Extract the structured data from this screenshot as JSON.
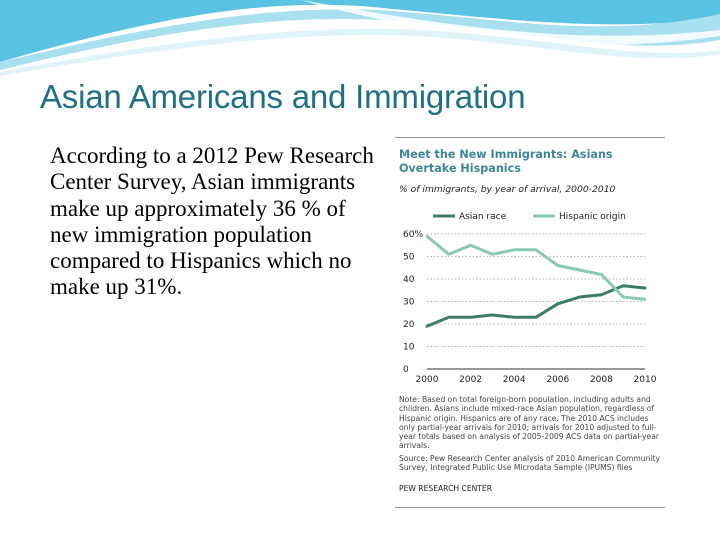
{
  "slide": {
    "title": "Asian Americans and Immigration",
    "body": "According to a 2012 Pew Research Center Survey, Asian immigrants make up approximately 36 % of new immigration population compared to Hispanics which no make up 31%.",
    "title_color": "#1f6f87",
    "header_colors": [
      "#5ac3e4",
      "#a8e0ef",
      "#dff3f9"
    ]
  },
  "chart_data": {
    "type": "line",
    "title": "Meet the New Immigrants: Asians Overtake Hispanics",
    "subtitle": "% of immigrants, by year of arrival, 2000-2010",
    "x": [
      2000,
      2001,
      2002,
      2003,
      2004,
      2005,
      2006,
      2007,
      2008,
      2009,
      2010
    ],
    "x_ticks": [
      "2000",
      "2002",
      "2004",
      "2006",
      "2008",
      "2010"
    ],
    "y_ticks": [
      "0",
      "10",
      "20",
      "30",
      "40",
      "50",
      "60%"
    ],
    "xlim": [
      2000,
      2010
    ],
    "ylim": [
      0,
      60
    ],
    "grid": "horizontal dotted",
    "legend_position": "top",
    "series": [
      {
        "name": "Asian race",
        "color": "#3d7c67",
        "values": [
          19,
          23,
          23,
          24,
          23,
          23,
          29,
          32,
          33,
          37,
          36
        ]
      },
      {
        "name": "Hispanic origin",
        "color": "#8bc9b4",
        "values": [
          59,
          51,
          55,
          51,
          53,
          53,
          46,
          44,
          42,
          32,
          31
        ]
      }
    ],
    "note": "Note: Based on total foreign-born population, including adults and children. Asians include mixed-race Asian population, regardless of Hispanic origin. Hispanics are of any race. The 2010 ACS includes only partial-year arrivals for 2010; arrivals for 2010 adjusted to full-year totals based on analysis of 2005-2009 ACS data on partial-year arrivals.",
    "source": "Source: Pew Research Center analysis of 2010 American Community Survey, Integrated Public Use Microdata Sample (IPUMS) files",
    "organization": "PEW RESEARCH CENTER"
  }
}
